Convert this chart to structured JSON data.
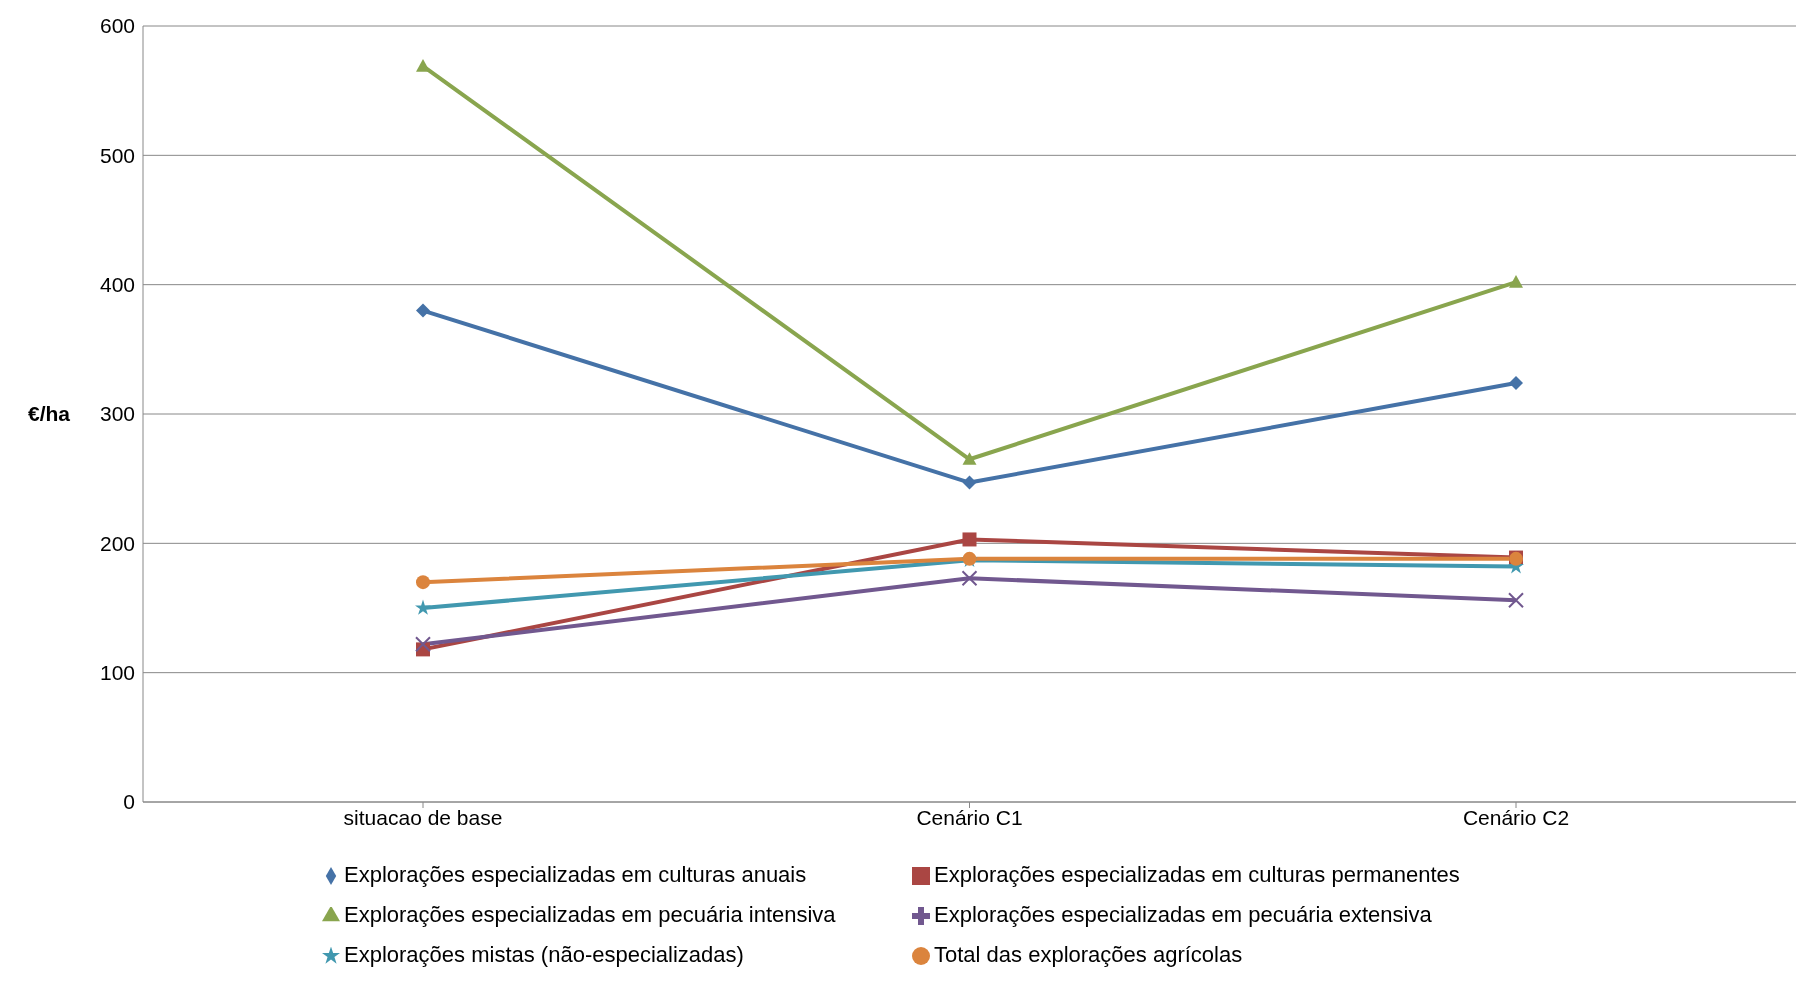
{
  "chart_data": {
    "type": "line",
    "ylabel": "€/ha",
    "categories": [
      "situacao de base",
      "Cenário C1",
      "Cenário C2"
    ],
    "ylim": [
      0,
      600
    ],
    "yticks": [
      0,
      100,
      200,
      300,
      400,
      500,
      600
    ],
    "grid": "y",
    "legend": "bottom",
    "line_style": "solid",
    "series": [
      {
        "name": "Explorações especializadas em culturas anuais",
        "color": "#4572a7",
        "marker": "diamond",
        "values": [
          380,
          247,
          324
        ]
      },
      {
        "name": "Explorações especializadas em culturas permanentes",
        "color": "#aa4643",
        "marker": "square",
        "values": [
          118,
          203,
          189
        ]
      },
      {
        "name": "Explorações especializadas em pecuária intensiva",
        "color": "#89a54e",
        "marker": "triangle",
        "values": [
          569,
          265,
          402
        ]
      },
      {
        "name": "Explorações especializadas em pecuária extensiva",
        "color": "#71588f",
        "marker": "cross",
        "values": [
          122,
          173,
          156
        ]
      },
      {
        "name": "Explorações mistas (não-especializadas)",
        "color": "#4198af",
        "marker": "star",
        "values": [
          150,
          187,
          182
        ]
      },
      {
        "name": "Total das explorações agrícolas",
        "color": "#db843d",
        "marker": "circle",
        "values": [
          170,
          188,
          188
        ]
      }
    ]
  }
}
